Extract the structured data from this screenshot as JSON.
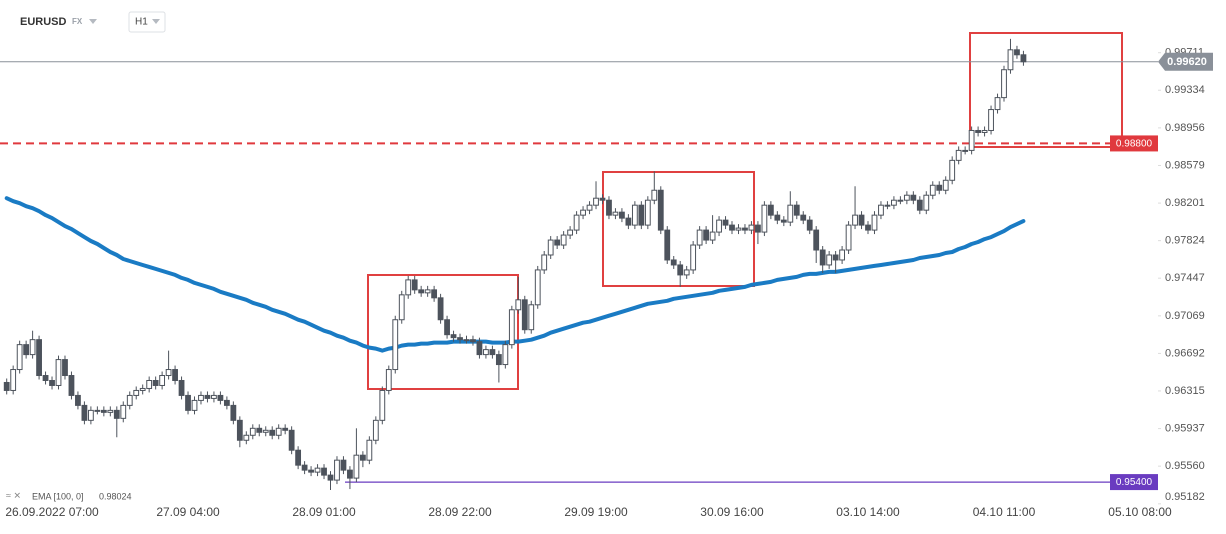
{
  "header": {
    "symbol": "EURUSD",
    "market": "FX",
    "timeframe": "H1"
  },
  "chart_data": {
    "type": "candlestick",
    "categories": [
      null,
      null,
      null,
      null,
      null,
      null,
      null,
      "26.09.2022 07:00",
      null,
      null,
      null,
      null,
      null,
      null,
      null,
      null,
      null,
      null,
      null,
      null,
      null,
      null,
      null,
      null,
      null,
      null,
      null,
      null,
      "27.09 04:00",
      null,
      null,
      null,
      null,
      null,
      null,
      null,
      null,
      null,
      null,
      null,
      null,
      null,
      null,
      null,
      null,
      null,
      null,
      null,
      null,
      "28.09 01:00",
      null,
      null,
      null,
      null,
      null,
      null,
      null,
      null,
      null,
      null,
      null,
      null,
      null,
      null,
      null,
      null,
      null,
      null,
      null,
      null,
      "28.09 22:00",
      null,
      null,
      null,
      null,
      null,
      null,
      null,
      null,
      null,
      null,
      null,
      null,
      null,
      null,
      null,
      null,
      null,
      null,
      null,
      null,
      "29.09 19:00",
      null,
      null,
      null,
      null,
      null,
      null,
      null,
      null,
      null,
      null,
      null,
      null,
      null,
      null,
      null,
      null,
      null,
      null,
      null,
      null,
      "30.09 16:00",
      null,
      null,
      null,
      null,
      null,
      null,
      null,
      null,
      null,
      null,
      null,
      null,
      null,
      null,
      null,
      null,
      null,
      null,
      null,
      null,
      "03.10 14:00",
      null,
      null,
      null,
      null,
      null,
      null,
      null,
      null,
      null,
      null,
      null,
      null,
      null,
      null,
      null,
      null,
      null,
      null,
      null,
      null,
      "04.10 11:00",
      null,
      null,
      null,
      null,
      null,
      null,
      null,
      null,
      null,
      null,
      null,
      null,
      null,
      null,
      null,
      null,
      null,
      null,
      null,
      null,
      "05.10 08:00"
    ],
    "open": [
      0.964,
      0.9632,
      0.9653,
      0.9678,
      0.9668,
      0.9683,
      0.9647,
      0.9642,
      0.9637,
      0.9663,
      0.9647,
      0.9627,
      0.9617,
      0.9602,
      0.9612,
      0.9612,
      0.961,
      0.9612,
      0.9604,
      0.9617,
      0.9627,
      0.9632,
      0.9634,
      0.9642,
      0.9637,
      0.9647,
      0.9653,
      0.9642,
      0.9627,
      0.9612,
      0.9622,
      0.9627,
      0.9624,
      0.9627,
      0.9622,
      0.9617,
      0.9602,
      0.9582,
      0.9587,
      0.9594,
      0.959,
      0.9592,
      0.9587,
      0.9594,
      0.9592,
      0.9572,
      0.9557,
      0.9552,
      0.955,
      0.9554,
      0.9547,
      0.9542,
      0.9562,
      0.9552,
      0.9544,
      0.9567,
      0.9562,
      0.9582,
      0.9602,
      0.9632,
      0.9653,
      0.9703,
      0.9728,
      0.9743,
      0.9733,
      0.973,
      0.9733,
      0.9725,
      0.9703,
      0.9688,
      0.9685,
      0.9683,
      0.9683,
      0.9681,
      0.9668,
      0.9673,
      0.9668,
      0.9658,
      0.9678,
      0.9713,
      0.9723,
      0.9693,
      0.9718,
      0.9753,
      0.9768,
      0.9783,
      0.9778,
      0.9788,
      0.9793,
      0.9808,
      0.9813,
      0.9818,
      0.9825,
      0.9823,
      0.9808,
      0.9811,
      0.9805,
      0.9798,
      0.9818,
      0.9798,
      0.9823,
      0.9833,
      0.9793,
      0.9763,
      0.9758,
      0.9748,
      0.9753,
      0.9778,
      0.9793,
      0.9783,
      0.9791,
      0.9803,
      0.9798,
      0.9793,
      0.9795,
      0.9793,
      0.9798,
      0.9791,
      0.9818,
      0.9808,
      0.9803,
      0.9801,
      0.9818,
      0.9808,
      0.9803,
      0.9793,
      0.9773,
      0.9758,
      0.9768,
      0.9763,
      0.9773,
      0.9798,
      0.9808,
      0.9798,
      0.9793,
      0.9808,
      0.9818,
      0.9818,
      0.9823,
      0.9823,
      0.9828,
      0.9823,
      0.9813,
      0.9828,
      0.9838,
      0.9833,
      0.9843,
      0.9863,
      0.9873,
      0.9873,
      0.9893,
      0.9891,
      0.9893,
      0.9914,
      0.9926,
      0.9954,
      0.9974,
      0.9969,
      null,
      null,
      null,
      null,
      null,
      null,
      null,
      null,
      null,
      null,
      null,
      null,
      null,
      null,
      null,
      null,
      null,
      null
    ],
    "high": [
      0.9644,
      0.9657,
      0.9682,
      0.9682,
      0.9692,
      0.9687,
      0.9651,
      0.9646,
      0.9667,
      0.9667,
      0.9651,
      0.9631,
      0.9621,
      0.9616,
      0.9616,
      0.9616,
      0.9616,
      0.9616,
      0.9621,
      0.9631,
      0.9636,
      0.9638,
      0.9646,
      0.9646,
      0.9651,
      0.9672,
      0.9657,
      0.9646,
      0.9631,
      0.9626,
      0.9631,
      0.9631,
      0.9631,
      0.9631,
      0.9626,
      0.9621,
      0.9606,
      0.9591,
      0.9598,
      0.9598,
      0.9596,
      0.9596,
      0.9598,
      0.9598,
      0.9596,
      0.9576,
      0.9561,
      0.9556,
      0.9558,
      0.9558,
      0.9551,
      0.9566,
      0.9566,
      0.9556,
      0.9594,
      0.9571,
      0.9586,
      0.9606,
      0.9636,
      0.9657,
      0.9707,
      0.9732,
      0.9747,
      0.9747,
      0.9737,
      0.9737,
      0.9737,
      0.9729,
      0.9707,
      0.9692,
      0.9689,
      0.9687,
      0.9687,
      0.9685,
      0.9677,
      0.9677,
      0.9672,
      0.9682,
      0.9717,
      0.9746,
      0.9727,
      0.9722,
      0.9757,
      0.9772,
      0.9787,
      0.9787,
      0.9792,
      0.9797,
      0.9812,
      0.9817,
      0.9822,
      0.9842,
      0.9829,
      0.9827,
      0.9815,
      0.9815,
      0.9809,
      0.9822,
      0.9822,
      0.9827,
      0.9852,
      0.9837,
      0.9797,
      0.9767,
      0.9762,
      0.9757,
      0.9782,
      0.9797,
      0.9797,
      0.9808,
      0.9807,
      0.9807,
      0.9802,
      0.9799,
      0.9799,
      0.9802,
      0.9802,
      0.9822,
      0.9822,
      0.9812,
      0.9807,
      0.9832,
      0.9822,
      0.9812,
      0.9807,
      0.9797,
      0.9777,
      0.9772,
      0.9772,
      0.9777,
      0.9802,
      0.9837,
      0.9812,
      0.9802,
      0.9812,
      0.9822,
      0.9822,
      0.9827,
      0.9827,
      0.9832,
      0.9832,
      0.9827,
      0.9832,
      0.9842,
      0.9842,
      0.9847,
      0.9867,
      0.9877,
      0.9877,
      0.9897,
      0.9897,
      0.9897,
      0.9918,
      0.993,
      0.9958,
      0.9985,
      0.9978,
      0.9973,
      null,
      null,
      null,
      null,
      null,
      null,
      null,
      null,
      null,
      null,
      null,
      null,
      null,
      null,
      null,
      null,
      null,
      null
    ],
    "low": [
      0.9628,
      0.9628,
      0.9649,
      0.9664,
      0.9664,
      0.9643,
      0.9638,
      0.9633,
      0.9633,
      0.9643,
      0.9623,
      0.9613,
      0.9598,
      0.9598,
      0.9608,
      0.9606,
      0.9606,
      0.9585,
      0.96,
      0.9613,
      0.9623,
      0.9628,
      0.963,
      0.9633,
      0.9633,
      0.9643,
      0.9638,
      0.9623,
      0.9608,
      0.9608,
      0.9618,
      0.962,
      0.962,
      0.9618,
      0.9613,
      0.9598,
      0.9575,
      0.9578,
      0.9583,
      0.9586,
      0.9586,
      0.9583,
      0.9583,
      0.9588,
      0.9568,
      0.9553,
      0.9548,
      0.9546,
      0.9546,
      0.9543,
      0.9532,
      0.9538,
      0.9548,
      0.9533,
      0.954,
      0.9555,
      0.9558,
      0.9578,
      0.9598,
      0.9628,
      0.9649,
      0.9699,
      0.9724,
      0.9729,
      0.9726,
      0.9726,
      0.9721,
      0.9699,
      0.9684,
      0.9681,
      0.9679,
      0.9679,
      0.9677,
      0.9664,
      0.9664,
      0.9664,
      0.964,
      0.9654,
      0.9674,
      0.9709,
      0.9689,
      0.9689,
      0.9714,
      0.9749,
      0.9764,
      0.9774,
      0.9774,
      0.9784,
      0.9789,
      0.9804,
      0.9809,
      0.9814,
      0.9819,
      0.9804,
      0.9804,
      0.9801,
      0.9794,
      0.9794,
      0.9794,
      0.9794,
      0.9819,
      0.9789,
      0.9759,
      0.9754,
      0.9736,
      0.9744,
      0.9749,
      0.9774,
      0.9779,
      0.9779,
      0.9787,
      0.9794,
      0.9789,
      0.9789,
      0.9789,
      0.9789,
      0.9779,
      0.9787,
      0.9804,
      0.9799,
      0.9797,
      0.9797,
      0.9804,
      0.9799,
      0.9789,
      0.976,
      0.975,
      0.9754,
      0.975,
      0.9759,
      0.9769,
      0.9794,
      0.9794,
      0.9789,
      0.9789,
      0.9804,
      0.9814,
      0.9814,
      0.9819,
      0.9819,
      0.9819,
      0.9809,
      0.9809,
      0.9824,
      0.9829,
      0.9829,
      0.9839,
      0.9859,
      0.9869,
      0.9869,
      0.9887,
      0.9887,
      0.9889,
      0.991,
      0.9922,
      0.995,
      0.9965,
      0.9958,
      null,
      null,
      null,
      null,
      null,
      null,
      null,
      null,
      null,
      null,
      null,
      null,
      null,
      null,
      null,
      null,
      null,
      null
    ],
    "close": [
      0.9632,
      0.9653,
      0.9678,
      0.9668,
      0.9683,
      0.9647,
      0.9642,
      0.9637,
      0.9663,
      0.9647,
      0.9627,
      0.9617,
      0.9602,
      0.9612,
      0.9612,
      0.961,
      0.9612,
      0.9604,
      0.9617,
      0.9627,
      0.9632,
      0.9634,
      0.9642,
      0.9637,
      0.9647,
      0.9653,
      0.9642,
      0.9627,
      0.9612,
      0.9622,
      0.9627,
      0.9624,
      0.9627,
      0.9622,
      0.9617,
      0.9602,
      0.9582,
      0.9587,
      0.9594,
      0.959,
      0.9592,
      0.9587,
      0.9594,
      0.9592,
      0.9572,
      0.9557,
      0.9552,
      0.955,
      0.9554,
      0.9547,
      0.9542,
      0.9562,
      0.9552,
      0.9544,
      0.9567,
      0.9562,
      0.9582,
      0.9602,
      0.9632,
      0.9653,
      0.9703,
      0.9728,
      0.9743,
      0.9733,
      0.973,
      0.9733,
      0.9725,
      0.9703,
      0.9688,
      0.9685,
      0.9683,
      0.9683,
      0.9681,
      0.9668,
      0.9673,
      0.9668,
      0.9658,
      0.9678,
      0.9713,
      0.9723,
      0.9693,
      0.9718,
      0.9753,
      0.9768,
      0.9783,
      0.9778,
      0.9788,
      0.9793,
      0.9808,
      0.9813,
      0.9818,
      0.9825,
      0.9823,
      0.9808,
      0.9811,
      0.9805,
      0.9798,
      0.9818,
      0.9798,
      0.9823,
      0.9833,
      0.9793,
      0.9763,
      0.9758,
      0.9748,
      0.9753,
      0.9778,
      0.9793,
      0.9783,
      0.9791,
      0.9803,
      0.9798,
      0.9793,
      0.9795,
      0.9793,
      0.9798,
      0.9791,
      0.9818,
      0.9808,
      0.9803,
      0.9801,
      0.9818,
      0.9808,
      0.9803,
      0.9793,
      0.9773,
      0.9758,
      0.9768,
      0.9763,
      0.9773,
      0.9798,
      0.9808,
      0.9798,
      0.9793,
      0.9808,
      0.9818,
      0.9818,
      0.9823,
      0.9823,
      0.9828,
      0.9823,
      0.9813,
      0.9828,
      0.9838,
      0.9833,
      0.9843,
      0.9863,
      0.9873,
      0.9873,
      0.9893,
      0.9891,
      0.9893,
      0.9914,
      0.9926,
      0.9954,
      0.9974,
      0.9969,
      0.9962,
      null,
      null,
      null,
      null,
      null,
      null,
      null,
      null,
      null,
      null,
      null,
      null,
      null,
      null,
      null,
      null,
      null,
      null
    ],
    "up_color": "#ffffff",
    "down_color": "#4d535c",
    "ema": {
      "name": "EMA [100, 0]",
      "last_value": 0.98024,
      "color": "#1a7bc4",
      "values": [
        0.9825,
        0.9822,
        0.982,
        0.9817,
        0.9815,
        0.9812,
        0.9808,
        0.9805,
        0.9801,
        0.9797,
        0.9794,
        0.979,
        0.9786,
        0.9782,
        0.9779,
        0.9775,
        0.9771,
        0.9768,
        0.9764,
        0.9762,
        0.976,
        0.9758,
        0.9756,
        0.9754,
        0.9752,
        0.975,
        0.9748,
        0.9745,
        0.9743,
        0.974,
        0.9738,
        0.9736,
        0.9734,
        0.9731,
        0.9729,
        0.9727,
        0.9725,
        0.9723,
        0.972,
        0.9718,
        0.9716,
        0.9713,
        0.9711,
        0.9709,
        0.9706,
        0.9703,
        0.9701,
        0.9698,
        0.9695,
        0.9692,
        0.969,
        0.9687,
        0.9685,
        0.9682,
        0.968,
        0.9677,
        0.9675,
        0.9674,
        0.9672,
        0.9674,
        0.9675,
        0.9677,
        0.9678,
        0.9678,
        0.9679,
        0.9679,
        0.968,
        0.968,
        0.968,
        0.9681,
        0.9681,
        0.9681,
        0.9681,
        0.9681,
        0.9681,
        0.968,
        0.968,
        0.968,
        0.9681,
        0.9681,
        0.9682,
        0.9683,
        0.9685,
        0.9687,
        0.969,
        0.9692,
        0.9694,
        0.9696,
        0.9698,
        0.97,
        0.9701,
        0.9703,
        0.9705,
        0.9707,
        0.9709,
        0.9711,
        0.9713,
        0.9715,
        0.9717,
        0.9719,
        0.972,
        0.9721,
        0.9722,
        0.9724,
        0.9725,
        0.9726,
        0.9727,
        0.9728,
        0.9729,
        0.973,
        0.9732,
        0.9733,
        0.9734,
        0.9735,
        0.9736,
        0.9738,
        0.9739,
        0.974,
        0.9741,
        0.9743,
        0.9744,
        0.9745,
        0.9746,
        0.9748,
        0.9749,
        0.9749,
        0.975,
        0.9751,
        0.9751,
        0.9752,
        0.9753,
        0.9754,
        0.9755,
        0.9756,
        0.9757,
        0.9758,
        0.9759,
        0.976,
        0.9761,
        0.9762,
        0.9763,
        0.9765,
        0.9766,
        0.9767,
        0.9768,
        0.977,
        0.9771,
        0.9774,
        0.9776,
        0.9779,
        0.9781,
        0.9784,
        0.9786,
        0.9789,
        0.9792,
        0.9796,
        0.9799,
        0.9802,
        null,
        null,
        null,
        null,
        null,
        null,
        null,
        null,
        null,
        null,
        null,
        null,
        null,
        null,
        null,
        null,
        null,
        null
      ]
    },
    "current_price": {
      "value": 0.9962,
      "label": "0.99620",
      "color": "#8a9099"
    },
    "levels": [
      {
        "value": 0.988,
        "label": "0.98800",
        "color": "#e0393e",
        "style": "dashed"
      },
      {
        "value": 0.954,
        "label": "0.95400",
        "color": "#6a3cc0",
        "style": "solid"
      }
    ],
    "ylim": [
      0.9517,
      1.0024
    ],
    "yticks": [
      0.99711,
      0.99334,
      0.98956,
      0.98579,
      0.98201,
      0.97824,
      0.97447,
      0.97069,
      0.96692,
      0.96315,
      0.95937,
      {
        "value": 0.9556,
        "label": "0.95560"
      },
      0.95182
    ],
    "grid": false
  }
}
